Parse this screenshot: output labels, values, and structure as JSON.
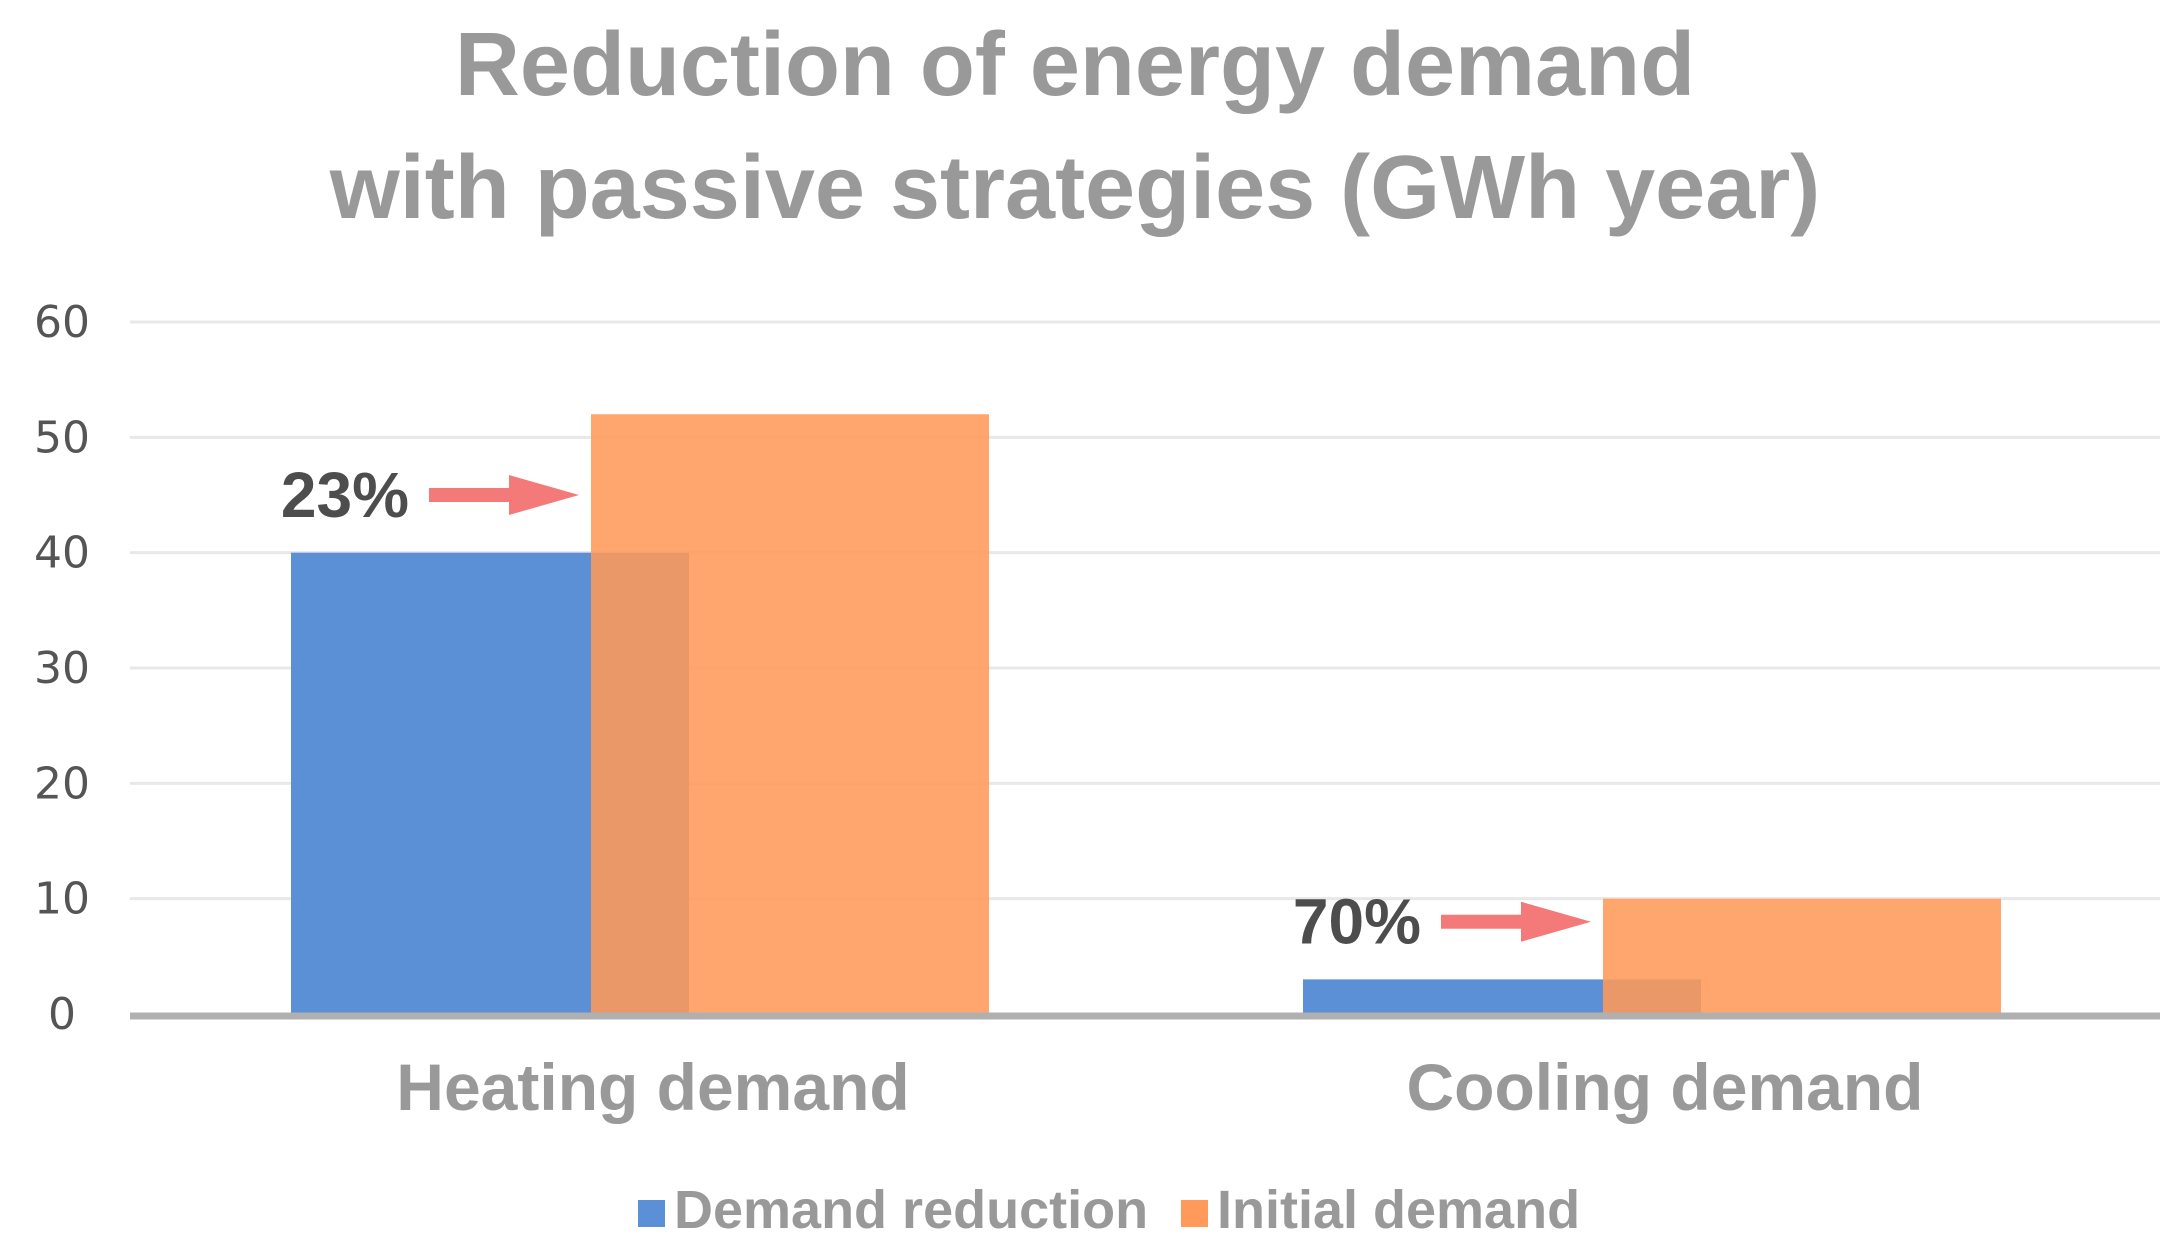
{
  "chart_data": {
    "type": "bar",
    "title": [
      "Reduction of energy demand",
      "with passive strategies (GWh year)"
    ],
    "xlabel": "",
    "ylabel": "",
    "ylim": [
      0,
      60
    ],
    "yticks": [
      0,
      10,
      20,
      30,
      40,
      50,
      60
    ],
    "grid": true,
    "legend_position": "bottom",
    "categories": [
      "Heating demand",
      "Cooling demand"
    ],
    "series": [
      {
        "name": "Demand reduction",
        "values": [
          40,
          3
        ],
        "color": "#5b8fd6"
      },
      {
        "name": "Initial demand",
        "values": [
          52,
          10
        ],
        "color": "#ff9a5a"
      }
    ],
    "annotations": [
      {
        "text": "23%",
        "category": "Heating demand",
        "y": 45,
        "arrow_color": "#f47a7a"
      },
      {
        "text": "70%",
        "category": "Cooling demand",
        "y": 8,
        "arrow_color": "#f47a7a"
      }
    ]
  }
}
